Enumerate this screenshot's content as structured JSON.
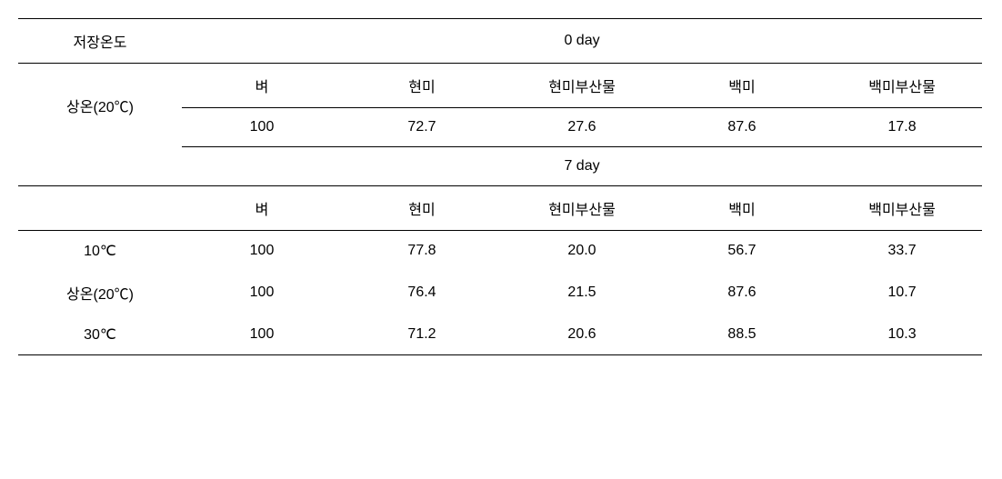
{
  "header": {
    "storage_temp_label": "저장온도",
    "day0_label": "0 day",
    "day7_label": "7 day"
  },
  "columns": {
    "c1": "벼",
    "c2": "현미",
    "c3": "현미부산물",
    "c4": "백미",
    "c5": "백미부산물"
  },
  "day0": {
    "row_label": "상온(20℃)",
    "v1": "100",
    "v2": "72.7",
    "v3": "27.6",
    "v4": "87.6",
    "v5": "17.8"
  },
  "day7": {
    "rows": [
      {
        "label": "10℃",
        "v1": "100",
        "v2": "77.8",
        "v3": "20.0",
        "v4": "56.7",
        "v5": "33.7"
      },
      {
        "label": "상온(20℃)",
        "v1": "100",
        "v2": "76.4",
        "v3": "21.5",
        "v4": "87.6",
        "v5": "10.7"
      },
      {
        "label": "30℃",
        "v1": "100",
        "v2": "71.2",
        "v3": "20.6",
        "v4": "88.5",
        "v5": "10.3"
      }
    ]
  },
  "styling": {
    "border_color": "#000000",
    "background_color": "#ffffff",
    "font_size": 16,
    "cell_padding": 12
  }
}
